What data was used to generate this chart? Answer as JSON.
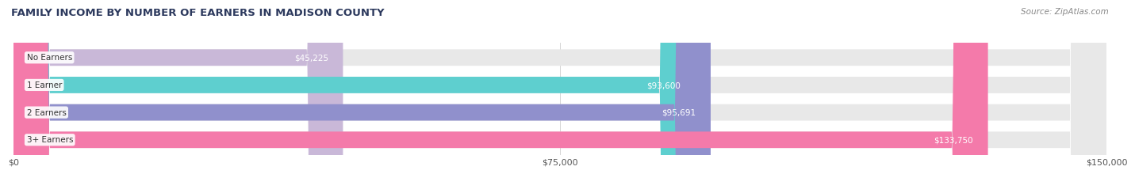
{
  "title": "FAMILY INCOME BY NUMBER OF EARNERS IN MADISON COUNTY",
  "source": "Source: ZipAtlas.com",
  "categories": [
    "No Earners",
    "1 Earner",
    "2 Earners",
    "3+ Earners"
  ],
  "values": [
    45225,
    93600,
    95691,
    133750
  ],
  "labels": [
    "$45,225",
    "$93,600",
    "$95,691",
    "$133,750"
  ],
  "bar_colors": [
    "#c9b8d8",
    "#5ecfcf",
    "#9090cc",
    "#f47aaa"
  ],
  "bar_bg_color": "#e8e8e8",
  "xlim": [
    0,
    150000
  ],
  "xtick_labels": [
    "$0",
    "$75,000",
    "$150,000"
  ],
  "title_color": "#2d3a5e",
  "title_fontsize": 9.5,
  "source_color": "#888888",
  "source_fontsize": 7.5,
  "label_fontsize": 7.5,
  "category_fontsize": 7.5,
  "background_color": "#ffffff"
}
